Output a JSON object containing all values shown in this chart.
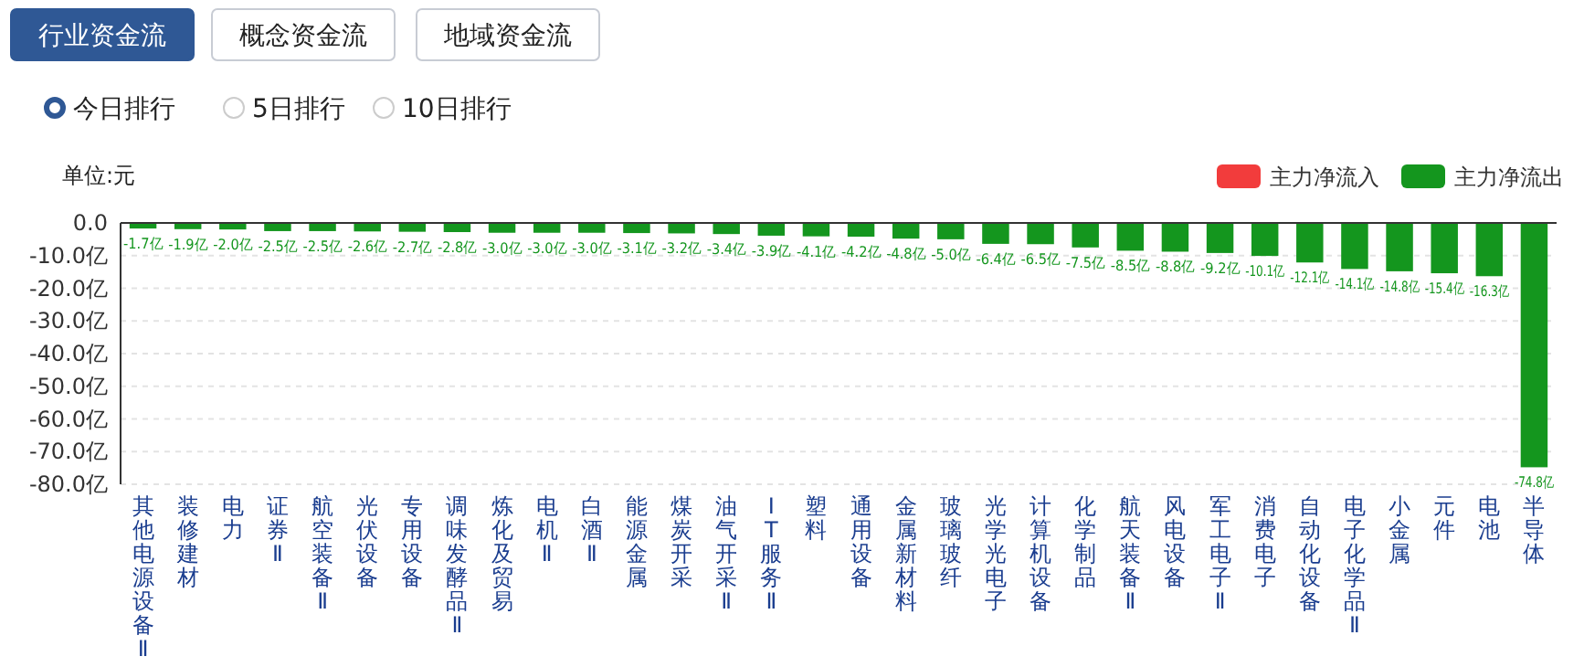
{
  "chart_data": {
    "type": "bar",
    "ylabel": "单位:元",
    "annotations": [
      "行业资金流",
      "概念资金流",
      "地域资金流",
      "今日排行",
      "5日排行",
      "10日排行"
    ],
    "categories": [
      "其他电源设备Ⅱ",
      "装修建材",
      "电力",
      "证券Ⅱ",
      "航空装备Ⅱ",
      "光伏设备",
      "专用设备",
      "调味发酵品Ⅱ",
      "炼化及贸易",
      "电机Ⅱ",
      "白酒Ⅱ",
      "能源金属",
      "煤炭开采",
      "油气开采Ⅱ",
      "IT服务Ⅱ",
      "塑料",
      "通用设备",
      "金属新材料",
      "玻璃玻纤",
      "光学光电子",
      "计算机设备",
      "化学制品",
      "航天装备Ⅱ",
      "风电设备",
      "军工电子Ⅱ",
      "消费电子",
      "自动化设备",
      "电子化学品Ⅱ",
      "小金属",
      "元件",
      "电池",
      "半导体"
    ],
    "series": [
      {
        "name": "主力净流入",
        "color": "#f23c3c",
        "values": [
          null,
          null,
          null,
          null,
          null,
          null,
          null,
          null,
          null,
          null,
          null,
          null,
          null,
          null,
          null,
          null,
          null,
          null,
          null,
          null,
          null,
          null,
          null,
          null,
          null,
          null,
          null,
          null,
          null,
          null,
          null,
          null
        ]
      },
      {
        "name": "主力净流出",
        "color": "#14961e",
        "values": [
          -1.7,
          -1.9,
          -2.0,
          -2.5,
          -2.5,
          -2.6,
          -2.7,
          -2.8,
          -3.0,
          -3.0,
          -3.0,
          -3.1,
          -3.2,
          -3.4,
          -3.9,
          -4.1,
          -4.2,
          -4.8,
          -5.0,
          -6.4,
          -6.5,
          -7.5,
          -8.5,
          -8.8,
          -9.2,
          -10.1,
          -12.1,
          -14.1,
          -14.8,
          -15.4,
          -16.3,
          -74.8
        ],
        "value_labels": [
          "-1.7亿",
          "-1.9亿",
          "-2.0亿",
          "-2.5亿",
          "-2.5亿",
          "-2.6亿",
          "-2.7亿",
          "-2.8亿",
          "-3.0亿",
          "-3.0亿",
          "-3.0亿",
          "-3.1亿",
          "-3.2亿",
          "-3.4亿",
          "-3.9亿",
          "-4.1亿",
          "-4.2亿",
          "-4.8亿",
          "-5.0亿",
          "-6.4亿",
          "-6.5亿",
          "-7.5亿",
          "-8.5亿",
          "-8.8亿",
          "-9.2亿",
          "-10.1亿",
          "-12.1亿",
          "-14.1亿",
          "-14.8亿",
          "-15.4亿",
          "-16.3亿",
          "-74.8亿"
        ]
      }
    ],
    "ylim": [
      -80,
      0
    ],
    "yticks": [
      {
        "value": 0,
        "label": "0.0"
      },
      {
        "value": -10,
        "label": "-10.0亿"
      },
      {
        "value": -20,
        "label": "-20.0亿"
      },
      {
        "value": -30,
        "label": "-30.0亿"
      },
      {
        "value": -40,
        "label": "-40.0亿"
      },
      {
        "value": -50,
        "label": "-50.0亿"
      },
      {
        "value": -60,
        "label": "-60.0亿"
      },
      {
        "value": -70,
        "label": "-70.0亿"
      },
      {
        "value": -80,
        "label": "-80.0亿"
      }
    ],
    "grid": "y",
    "legend": "top right"
  }
}
